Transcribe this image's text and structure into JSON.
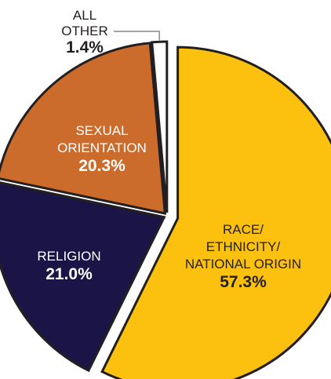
{
  "chart_data": {
    "type": "pie",
    "slices": [
      {
        "label_lines": [
          "RACE/",
          "ETHNICITY/",
          "NATIONAL ORIGIN"
        ],
        "value": 57.3,
        "value_label": "57.3%",
        "color": "#fcc10f",
        "label_color": "#231f20",
        "exploded": true
      },
      {
        "label_lines": [
          "RELIGION"
        ],
        "value": 21.0,
        "value_label": "21.0%",
        "color": "#1b1547",
        "label_color": "#ffffff",
        "exploded": false
      },
      {
        "label_lines": [
          "SEXUAL",
          "ORIENTATION"
        ],
        "value": 20.3,
        "value_label": "20.3%",
        "color": "#cc6c2c",
        "label_color": "#ffffff",
        "exploded": false
      },
      {
        "label_lines": [
          "ALL",
          "OTHER"
        ],
        "value": 1.4,
        "value_label": "1.4%",
        "color": "#ffffff",
        "label_color": "#231f20",
        "exploded": false,
        "callout": true
      }
    ],
    "border_color": "#231f20"
  }
}
